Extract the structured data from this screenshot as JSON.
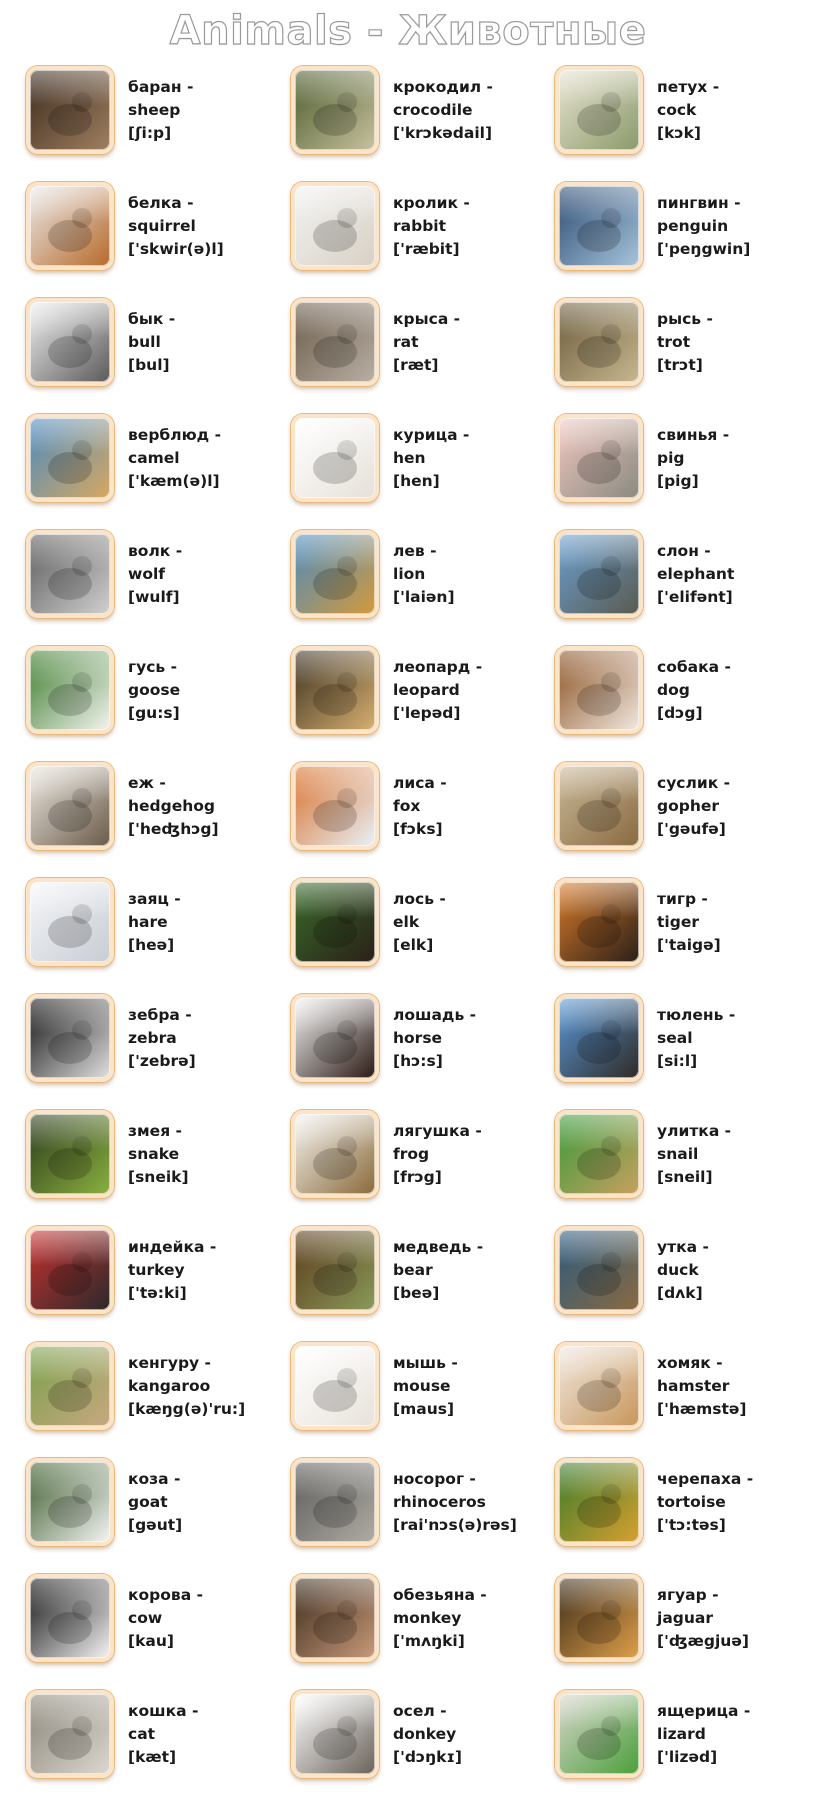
{
  "title": "Animals - Животные",
  "animals": [
    {
      "ru": "баран -",
      "en": "sheep",
      "ipa": "[ʃi:p]",
      "icon": "ram-photo-icon",
      "c1": "#3a2a1e",
      "c2": "#a08060"
    },
    {
      "ru": "крокодил -",
      "en": "crocodile",
      "ipa": "['krɔkədail]",
      "icon": "crocodile-photo-icon",
      "c1": "#4a5a2a",
      "c2": "#c8c2a0"
    },
    {
      "ru": "петух -",
      "en": "cock",
      "ipa": "[kɔk]",
      "icon": "rooster-photo-icon",
      "c1": "#e8e2d0",
      "c2": "#8a9a6a"
    },
    {
      "ru": "белка -",
      "en": "squirrel",
      "ipa": "['skwir(ə)l]",
      "icon": "squirrel-photo-icon",
      "c1": "#e9e9e9",
      "c2": "#b86a2a"
    },
    {
      "ru": "кролик -",
      "en": "rabbit",
      "ipa": "['ræbit]",
      "icon": "rabbit-photo-icon",
      "c1": "#f2f2f2",
      "c2": "#d8d0c4"
    },
    {
      "ru": "пингвин -",
      "en": "penguin",
      "ipa": "['peŋgwin]",
      "icon": "penguin-photo-icon",
      "c1": "#2a4a70",
      "c2": "#a8c4dc"
    },
    {
      "ru": "бык -",
      "en": "bull",
      "ipa": "[bul]",
      "icon": "bull-photo-icon",
      "c1": "#f0f0f0",
      "c2": "#5a5a5a"
    },
    {
      "ru": "крыса -",
      "en": "rat",
      "ipa": "[ræt]",
      "icon": "rat-photo-icon",
      "c1": "#6a5a48",
      "c2": "#b8b0a4"
    },
    {
      "ru": "рысь -",
      "en": "trot",
      "ipa": "[trɔt]",
      "icon": "lynx-photo-icon",
      "c1": "#6a5a3a",
      "c2": "#c8b890"
    },
    {
      "ru": "верблюд -",
      "en": "camel",
      "ipa": "['kæm(ə)l]",
      "icon": "camel-photo-icon",
      "c1": "#4a8ac0",
      "c2": "#d8a860"
    },
    {
      "ru": "курица -",
      "en": "hen",
      "ipa": "[hen]",
      "icon": "hen-photo-icon",
      "c1": "#ffffff",
      "c2": "#e6e0d8"
    },
    {
      "ru": "свинья -",
      "en": "pig",
      "ipa": "[pig]",
      "icon": "pig-photo-icon",
      "c1": "#f0c8c0",
      "c2": "#8a8a80"
    },
    {
      "ru": "волк -",
      "en": "wolf",
      "ipa": "[wulf]",
      "icon": "wolf-photo-icon",
      "c1": "#5a5a5a",
      "c2": "#d0d0d0"
    },
    {
      "ru": "лев -",
      "en": "lion",
      "ipa": "['laiən]",
      "icon": "lion-photo-icon",
      "c1": "#4a8ac0",
      "c2": "#d49a3a"
    },
    {
      "ru": "слон -",
      "en": "elephant",
      "ipa": "['elifənt]",
      "icon": "elephant-photo-icon",
      "c1": "#6aa0d0",
      "c2": "#5a5a50"
    },
    {
      "ru": "гусь -",
      "en": "goose",
      "ipa": "[gu:s]",
      "icon": "goose-photo-icon",
      "c1": "#3a7a2a",
      "c2": "#f4f4f0"
    },
    {
      "ru": "леопард -",
      "en": "leopard",
      "ipa": "['lepəd]",
      "icon": "leopard-photo-icon",
      "c1": "#3a3020",
      "c2": "#d8b070"
    },
    {
      "ru": "собака -",
      "en": "dog",
      "ipa": "[dɔg]",
      "icon": "dog-photo-icon",
      "c1": "#8a5020",
      "c2": "#f0e8e0"
    },
    {
      "ru": "еж -",
      "en": "hedgehog",
      "ipa": "['heʤhɔg]",
      "icon": "hedgehog-photo-icon",
      "c1": "#ece8e0",
      "c2": "#6a5a48"
    },
    {
      "ru": "лиса -",
      "en": "fox",
      "ipa": "[fɔks]",
      "icon": "fox-photo-icon",
      "c1": "#d8702a",
      "c2": "#e8f0f8"
    },
    {
      "ru": "суслик -",
      "en": "gopher",
      "ipa": "['gəufə]",
      "icon": "gopher-photo-icon",
      "c1": "#c8b898",
      "c2": "#8a6a40"
    },
    {
      "ru": "заяц -",
      "en": "hare",
      "ipa": "[heə]",
      "icon": "hare-photo-icon",
      "c1": "#f4f6f8",
      "c2": "#c8ccd4"
    },
    {
      "ru": "лось -",
      "en": "elk",
      "ipa": "[elk]",
      "icon": "elk-photo-icon",
      "c1": "#3a6a2a",
      "c2": "#2a2018"
    },
    {
      "ru": "тигр -",
      "en": "tiger",
      "ipa": "['taigə]",
      "icon": "tiger-photo-icon",
      "c1": "#d87a2a",
      "c2": "#2a2018"
    },
    {
      "ru": "зебра -",
      "en": "zebra",
      "ipa": "['zebrə]",
      "icon": "zebra-photo-icon",
      "c1": "#101010",
      "c2": "#e0e0e0"
    },
    {
      "ru": "лошадь -",
      "en": "horse",
      "ipa": "[hɔ:s]",
      "icon": "horse-photo-icon",
      "c1": "#f4f4f4",
      "c2": "#2a1a14"
    },
    {
      "ru": "тюлень -",
      "en": "seal",
      "ipa": "[si:l]",
      "icon": "seal-photo-icon",
      "c1": "#5a9ad8",
      "c2": "#302a26"
    },
    {
      "ru": "змея -",
      "en": "snake",
      "ipa": "[sneik]",
      "icon": "snake-photo-icon",
      "c1": "#2a3a1a",
      "c2": "#8ab040"
    },
    {
      "ru": "лягушка -",
      "en": "frog",
      "ipa": "[frɔg]",
      "icon": "frog-photo-icon",
      "c1": "#f4f4f0",
      "c2": "#8a6a3a"
    },
    {
      "ru": "улитка -",
      "en": "snail",
      "ipa": "[sneil]",
      "icon": "snail-photo-icon",
      "c1": "#3a9a3a",
      "c2": "#c8a060"
    },
    {
      "ru": "индейка -",
      "en": "turkey",
      "ipa": "['tə:ki]",
      "icon": "turkey-photo-icon",
      "c1": "#c83030",
      "c2": "#2a2a2a"
    },
    {
      "ru": "медведь -",
      "en": "bear",
      "ipa": "[beə]",
      "icon": "bear-photo-icon",
      "c1": "#5a3a1a",
      "c2": "#8a9a5a"
    },
    {
      "ru": "утка -",
      "en": "duck",
      "ipa": "[dʌk]",
      "icon": "duck-photo-icon",
      "c1": "#2a5a80",
      "c2": "#8a6a40"
    },
    {
      "ru": "кенгуру -",
      "en": "kangaroo",
      "ipa": "[kæŋg(ə)'ru:]",
      "icon": "kangaroo-photo-icon",
      "c1": "#7aa04a",
      "c2": "#c8a880"
    },
    {
      "ru": "мышь -",
      "en": "mouse",
      "ipa": "[maus]",
      "icon": "mouse-photo-icon",
      "c1": "#ffffff",
      "c2": "#e8e2da"
    },
    {
      "ru": "хомяк -",
      "en": "hamster",
      "ipa": "['hæmstə]",
      "icon": "hamster-photo-icon",
      "c1": "#f0e8e0",
      "c2": "#c8965a"
    },
    {
      "ru": "коза -",
      "en": "goat",
      "ipa": "[gəut]",
      "icon": "goat-photo-icon",
      "c1": "#3a5a2a",
      "c2": "#f4f4f4"
    },
    {
      "ru": "носорог -",
      "en": "rhinoceros",
      "ipa": "[rai'nɔs(ə)rəs]",
      "icon": "rhinoceros-photo-icon",
      "c1": "#5a5a58",
      "c2": "#b0aca4"
    },
    {
      "ru": "черепаха -",
      "en": "tortoise",
      "ipa": "['tɔ:təs]",
      "icon": "tortoise-photo-icon",
      "c1": "#3a7a2a",
      "c2": "#d8a030"
    },
    {
      "ru": "корова -",
      "en": "cow",
      "ipa": "[kau]",
      "icon": "cow-photo-icon",
      "c1": "#101010",
      "c2": "#f4f4f4"
    },
    {
      "ru": "обезьяна -",
      "en": "monkey",
      "ipa": "['mʌŋki]",
      "icon": "monkey-photo-icon",
      "c1": "#3a2a1a",
      "c2": "#c89a7a"
    },
    {
      "ru": "ягуар -",
      "en": "jaguar",
      "ipa": "['ʤægjuə]",
      "icon": "jaguar-photo-icon",
      "c1": "#3a2a18",
      "c2": "#e0a04a"
    },
    {
      "ru": "кошка -",
      "en": "cat",
      "ipa": "[kæt]",
      "icon": "cat-photo-icon",
      "c1": "#8a8478",
      "c2": "#dcd8d0"
    },
    {
      "ru": "осел -",
      "en": "donkey",
      "ipa": "['dɔŋkɪ]",
      "icon": "donkey-photo-icon",
      "c1": "#ffffff",
      "c2": "#6a625a"
    },
    {
      "ru": "ящерица -",
      "en": "lizard",
      "ipa": "['lizəd]",
      "icon": "lizard-photo-icon",
      "c1": "#d8d4cc",
      "c2": "#4aa03a"
    }
  ]
}
